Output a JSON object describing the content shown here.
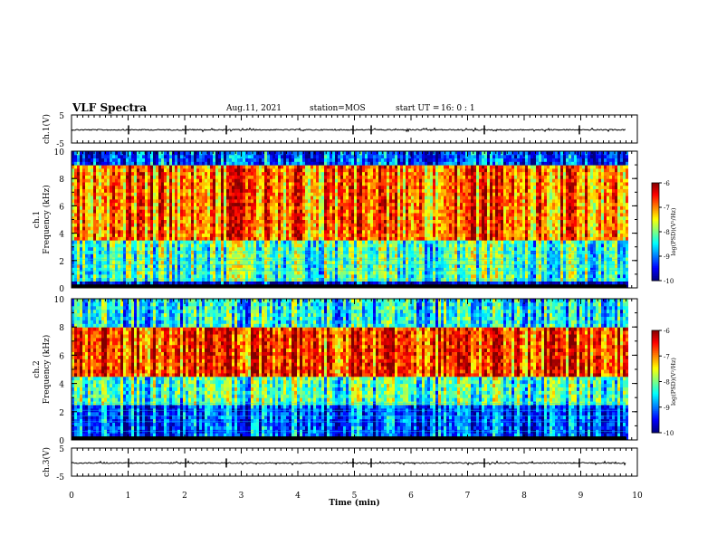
{
  "header": {
    "title": "VLF Spectra",
    "date": "Aug.11, 2021",
    "station": "station=MOS",
    "start_label": "start  UT =",
    "start_time": "16: 0  : 1"
  },
  "chart_data": [
    {
      "type": "line",
      "name": "ch1-waveform",
      "ylabel": "ch.1(V)",
      "ylim": [
        -5,
        5
      ],
      "yticks": [
        5,
        -5
      ],
      "baseline": -0.3,
      "xlim": [
        0,
        10
      ]
    },
    {
      "type": "heatmap",
      "name": "ch1-spectrogram",
      "ylabel": "ch.1\nFrequency (kHz)",
      "ylim": [
        0,
        10
      ],
      "yticks": [
        0,
        2,
        4,
        6,
        8,
        10
      ],
      "xlim": [
        0,
        9.8
      ],
      "colorbar": {
        "label": "log(PSD)(V²/Hz)",
        "range": [
          -10,
          -6
        ],
        "ticks": [
          -6,
          -7,
          -8,
          -9,
          -10
        ]
      },
      "description_bands": [
        {
          "freq_range": [
            0,
            0.5
          ],
          "level": -10
        },
        {
          "freq_range": [
            0.5,
            3.5
          ],
          "level": -8.5
        },
        {
          "freq_range": [
            3.5,
            9.0
          ],
          "level": -7.2
        },
        {
          "freq_range": [
            9.0,
            10
          ],
          "level": -9.5
        }
      ]
    },
    {
      "type": "heatmap",
      "name": "ch2-spectrogram",
      "ylabel": "ch.2\nFrequency (kHz)",
      "ylim": [
        0,
        10
      ],
      "yticks": [
        0,
        2,
        4,
        6,
        8,
        10
      ],
      "xlim": [
        0,
        9.8
      ],
      "colorbar": {
        "label": "log(PSD)(V²/Hz)",
        "range": [
          -10,
          -6
        ],
        "ticks": [
          -6,
          -7,
          -8,
          -9,
          -10
        ]
      },
      "description_bands": [
        {
          "freq_range": [
            0,
            2.5
          ],
          "level": -9.5
        },
        {
          "freq_range": [
            2.5,
            4.5
          ],
          "level": -8.5
        },
        {
          "freq_range": [
            4.5,
            8.0
          ],
          "level": -7.0
        },
        {
          "freq_range": [
            8.0,
            10
          ],
          "level": -8.8
        }
      ]
    },
    {
      "type": "line",
      "name": "ch3-waveform",
      "ylabel": "ch.3(V)",
      "ylim": [
        -5,
        5
      ],
      "yticks": [
        5,
        -5
      ],
      "baseline": -0.3,
      "xlim": [
        0,
        10
      ]
    }
  ],
  "xaxis": {
    "label": "Time  (min)",
    "ticks": [
      0,
      1,
      2,
      3,
      4,
      5,
      6,
      7,
      8,
      9,
      10
    ],
    "xlim": [
      0,
      10
    ]
  }
}
